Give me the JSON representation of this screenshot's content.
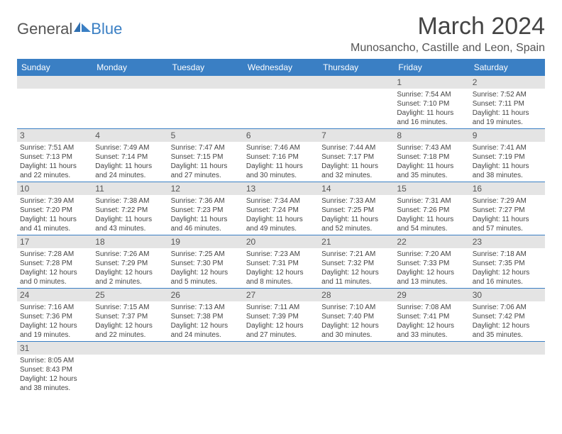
{
  "logo": {
    "textGeneral": "General",
    "textBlue": "Blue"
  },
  "header": {
    "monthTitle": "March 2024",
    "location": "Munosancho, Castille and Leon, Spain"
  },
  "colors": {
    "headerBg": "#3a7fc4",
    "dayNumBg": "#e4e4e4",
    "weekBorder": "#3a7fc4"
  },
  "dayNames": [
    "Sunday",
    "Monday",
    "Tuesday",
    "Wednesday",
    "Thursday",
    "Friday",
    "Saturday"
  ],
  "weeks": [
    [
      null,
      null,
      null,
      null,
      null,
      {
        "num": "1",
        "sunrise": "Sunrise: 7:54 AM",
        "sunset": "Sunset: 7:10 PM",
        "daylight": "Daylight: 11 hours and 16 minutes."
      },
      {
        "num": "2",
        "sunrise": "Sunrise: 7:52 AM",
        "sunset": "Sunset: 7:11 PM",
        "daylight": "Daylight: 11 hours and 19 minutes."
      }
    ],
    [
      {
        "num": "3",
        "sunrise": "Sunrise: 7:51 AM",
        "sunset": "Sunset: 7:13 PM",
        "daylight": "Daylight: 11 hours and 22 minutes."
      },
      {
        "num": "4",
        "sunrise": "Sunrise: 7:49 AM",
        "sunset": "Sunset: 7:14 PM",
        "daylight": "Daylight: 11 hours and 24 minutes."
      },
      {
        "num": "5",
        "sunrise": "Sunrise: 7:47 AM",
        "sunset": "Sunset: 7:15 PM",
        "daylight": "Daylight: 11 hours and 27 minutes."
      },
      {
        "num": "6",
        "sunrise": "Sunrise: 7:46 AM",
        "sunset": "Sunset: 7:16 PM",
        "daylight": "Daylight: 11 hours and 30 minutes."
      },
      {
        "num": "7",
        "sunrise": "Sunrise: 7:44 AM",
        "sunset": "Sunset: 7:17 PM",
        "daylight": "Daylight: 11 hours and 32 minutes."
      },
      {
        "num": "8",
        "sunrise": "Sunrise: 7:43 AM",
        "sunset": "Sunset: 7:18 PM",
        "daylight": "Daylight: 11 hours and 35 minutes."
      },
      {
        "num": "9",
        "sunrise": "Sunrise: 7:41 AM",
        "sunset": "Sunset: 7:19 PM",
        "daylight": "Daylight: 11 hours and 38 minutes."
      }
    ],
    [
      {
        "num": "10",
        "sunrise": "Sunrise: 7:39 AM",
        "sunset": "Sunset: 7:20 PM",
        "daylight": "Daylight: 11 hours and 41 minutes."
      },
      {
        "num": "11",
        "sunrise": "Sunrise: 7:38 AM",
        "sunset": "Sunset: 7:22 PM",
        "daylight": "Daylight: 11 hours and 43 minutes."
      },
      {
        "num": "12",
        "sunrise": "Sunrise: 7:36 AM",
        "sunset": "Sunset: 7:23 PM",
        "daylight": "Daylight: 11 hours and 46 minutes."
      },
      {
        "num": "13",
        "sunrise": "Sunrise: 7:34 AM",
        "sunset": "Sunset: 7:24 PM",
        "daylight": "Daylight: 11 hours and 49 minutes."
      },
      {
        "num": "14",
        "sunrise": "Sunrise: 7:33 AM",
        "sunset": "Sunset: 7:25 PM",
        "daylight": "Daylight: 11 hours and 52 minutes."
      },
      {
        "num": "15",
        "sunrise": "Sunrise: 7:31 AM",
        "sunset": "Sunset: 7:26 PM",
        "daylight": "Daylight: 11 hours and 54 minutes."
      },
      {
        "num": "16",
        "sunrise": "Sunrise: 7:29 AM",
        "sunset": "Sunset: 7:27 PM",
        "daylight": "Daylight: 11 hours and 57 minutes."
      }
    ],
    [
      {
        "num": "17",
        "sunrise": "Sunrise: 7:28 AM",
        "sunset": "Sunset: 7:28 PM",
        "daylight": "Daylight: 12 hours and 0 minutes."
      },
      {
        "num": "18",
        "sunrise": "Sunrise: 7:26 AM",
        "sunset": "Sunset: 7:29 PM",
        "daylight": "Daylight: 12 hours and 2 minutes."
      },
      {
        "num": "19",
        "sunrise": "Sunrise: 7:25 AM",
        "sunset": "Sunset: 7:30 PM",
        "daylight": "Daylight: 12 hours and 5 minutes."
      },
      {
        "num": "20",
        "sunrise": "Sunrise: 7:23 AM",
        "sunset": "Sunset: 7:31 PM",
        "daylight": "Daylight: 12 hours and 8 minutes."
      },
      {
        "num": "21",
        "sunrise": "Sunrise: 7:21 AM",
        "sunset": "Sunset: 7:32 PM",
        "daylight": "Daylight: 12 hours and 11 minutes."
      },
      {
        "num": "22",
        "sunrise": "Sunrise: 7:20 AM",
        "sunset": "Sunset: 7:33 PM",
        "daylight": "Daylight: 12 hours and 13 minutes."
      },
      {
        "num": "23",
        "sunrise": "Sunrise: 7:18 AM",
        "sunset": "Sunset: 7:35 PM",
        "daylight": "Daylight: 12 hours and 16 minutes."
      }
    ],
    [
      {
        "num": "24",
        "sunrise": "Sunrise: 7:16 AM",
        "sunset": "Sunset: 7:36 PM",
        "daylight": "Daylight: 12 hours and 19 minutes."
      },
      {
        "num": "25",
        "sunrise": "Sunrise: 7:15 AM",
        "sunset": "Sunset: 7:37 PM",
        "daylight": "Daylight: 12 hours and 22 minutes."
      },
      {
        "num": "26",
        "sunrise": "Sunrise: 7:13 AM",
        "sunset": "Sunset: 7:38 PM",
        "daylight": "Daylight: 12 hours and 24 minutes."
      },
      {
        "num": "27",
        "sunrise": "Sunrise: 7:11 AM",
        "sunset": "Sunset: 7:39 PM",
        "daylight": "Daylight: 12 hours and 27 minutes."
      },
      {
        "num": "28",
        "sunrise": "Sunrise: 7:10 AM",
        "sunset": "Sunset: 7:40 PM",
        "daylight": "Daylight: 12 hours and 30 minutes."
      },
      {
        "num": "29",
        "sunrise": "Sunrise: 7:08 AM",
        "sunset": "Sunset: 7:41 PM",
        "daylight": "Daylight: 12 hours and 33 minutes."
      },
      {
        "num": "30",
        "sunrise": "Sunrise: 7:06 AM",
        "sunset": "Sunset: 7:42 PM",
        "daylight": "Daylight: 12 hours and 35 minutes."
      }
    ],
    [
      {
        "num": "31",
        "sunrise": "Sunrise: 8:05 AM",
        "sunset": "Sunset: 8:43 PM",
        "daylight": "Daylight: 12 hours and 38 minutes."
      },
      null,
      null,
      null,
      null,
      null,
      null
    ]
  ]
}
